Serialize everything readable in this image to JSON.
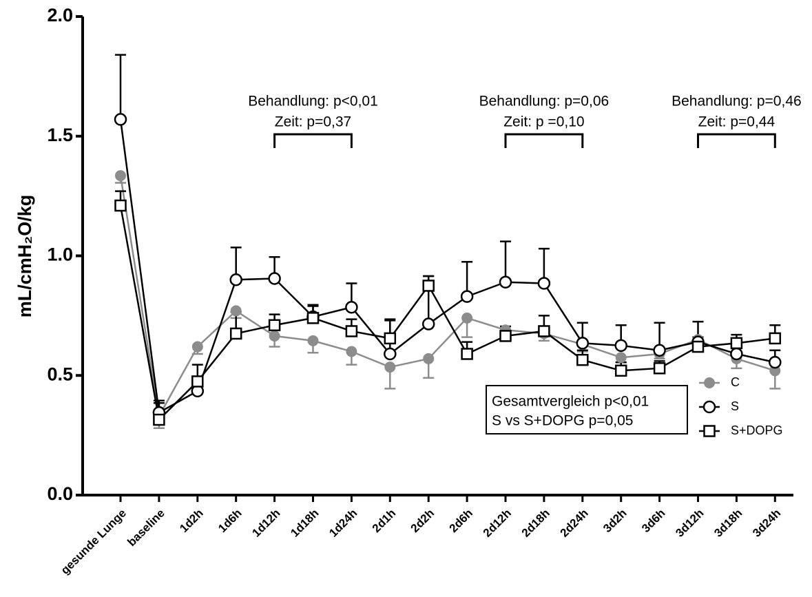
{
  "chart_data": {
    "type": "line",
    "ylabel": "mL/cmH₂O/kg",
    "categories": [
      "gesunde Lunge",
      "baseline",
      "1d2h",
      "1d6h",
      "1d12h",
      "1d18h",
      "1d24h",
      "2d1h",
      "2d2h",
      "2d6h",
      "2d12h",
      "2d18h",
      "2d24h",
      "3d2h",
      "3d6h",
      "3d12h",
      "3d18h",
      "3d24h"
    ],
    "ylim": [
      0,
      2
    ],
    "yticks": [
      {
        "value": 0,
        "label": "0.0"
      },
      {
        "value": 0.5,
        "label": "0.5"
      },
      {
        "value": 1,
        "label": "1.0"
      },
      {
        "value": 1.5,
        "label": "1.5"
      },
      {
        "value": 2,
        "label": "2.0"
      }
    ],
    "series": [
      {
        "name": "C",
        "color": "#8c8c8c",
        "marker": "filled-circle",
        "error_direction": "down",
        "values": [
          1.335,
          0.33,
          0.62,
          0.77,
          0.665,
          0.645,
          0.6,
          0.535,
          0.57,
          0.74,
          0.69,
          0.675,
          0.63,
          0.575,
          0.59,
          0.65,
          0.57,
          0.52
        ],
        "errors": [
          0.03,
          0.05,
          0.03,
          0.03,
          0.045,
          0.05,
          0.055,
          0.09,
          0.08,
          0.08,
          0.03,
          0.03,
          0.03,
          0.02,
          0.02,
          0.02,
          0.04,
          0.075
        ]
      },
      {
        "name": "S",
        "color": "#000000",
        "marker": "open-circle",
        "error_direction": "up",
        "values": [
          1.57,
          0.345,
          0.435,
          0.9,
          0.905,
          0.745,
          0.785,
          0.59,
          0.715,
          0.83,
          0.89,
          0.885,
          0.635,
          0.625,
          0.605,
          0.64,
          0.59,
          0.555
        ],
        "errors": [
          0.27,
          0.05,
          0.0,
          0.135,
          0.09,
          0.05,
          0.1,
          0.14,
          0.2,
          0.145,
          0.17,
          0.145,
          0.085,
          0.085,
          0.115,
          0.085,
          0.04,
          0.05
        ]
      },
      {
        "name": "S+DOPG",
        "color": "#000000",
        "marker": "open-square",
        "error_direction": "up",
        "values": [
          1.21,
          0.315,
          0.475,
          0.675,
          0.71,
          0.74,
          0.685,
          0.655,
          0.875,
          0.59,
          0.665,
          0.685,
          0.565,
          0.52,
          0.53,
          0.62,
          0.635,
          0.655
        ],
        "errors": [
          0.06,
          0.07,
          0.07,
          0.09,
          0.045,
          0.05,
          0.05,
          0.08,
          0.04,
          0.05,
          0.04,
          0.065,
          0.04,
          0.035,
          0.03,
          0.04,
          0.035,
          0.055
        ]
      }
    ],
    "annotations": [
      [
        "Behandlung: p<0,01",
        "Zeit: p=0,37"
      ],
      [
        "Behandlung: p=0,06",
        "Zeit: p =0,10"
      ],
      [
        "Behandlung: p=0,46",
        "Zeit: p=0,44"
      ]
    ],
    "box_text": [
      "Gesamtvergleich p<0,01",
      "S vs S+DOPG p=0,05"
    ],
    "legend": "right"
  }
}
